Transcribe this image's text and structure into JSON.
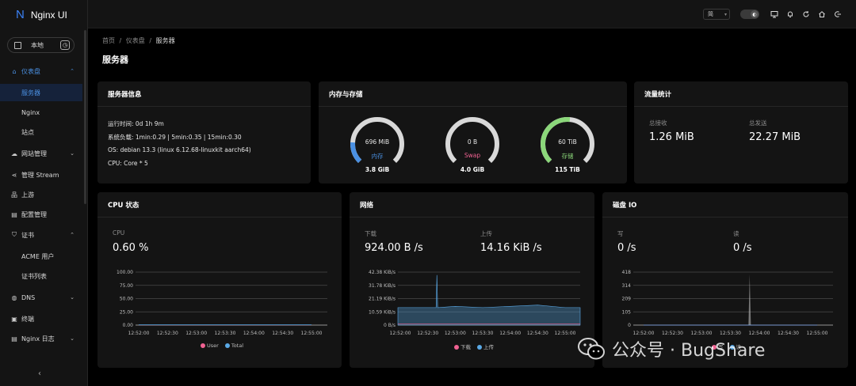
{
  "app": {
    "logo_mark": "N",
    "title": "Nginx UI"
  },
  "env": {
    "label": "本地",
    "switch_glyph": "◷"
  },
  "sidebar": {
    "items": [
      {
        "label": "仪表盘",
        "icon": "home-icon",
        "glyph": "⌂",
        "expanded": true
      },
      {
        "label": "服务器",
        "sub": true,
        "selected": true
      },
      {
        "label": "Nginx",
        "sub": true
      },
      {
        "label": "站点",
        "sub": true
      },
      {
        "label": "网站管理",
        "icon": "cloud-icon",
        "glyph": "☁"
      },
      {
        "label": "管理 Stream",
        "icon": "share-icon",
        "glyph": "⋖"
      },
      {
        "label": "上游",
        "icon": "cluster-icon",
        "glyph": "品"
      },
      {
        "label": "配置管理",
        "icon": "file-icon",
        "glyph": "▤"
      },
      {
        "label": "证书",
        "icon": "shield-icon",
        "glyph": "⛉",
        "expanded": true
      },
      {
        "label": "ACME 用户",
        "sub": true
      },
      {
        "label": "证书列表",
        "sub": true
      },
      {
        "label": "DNS",
        "icon": "globe-icon",
        "glyph": "◍"
      },
      {
        "label": "终端",
        "icon": "terminal-icon",
        "glyph": "▣"
      },
      {
        "label": "Nginx 日志",
        "icon": "log-icon",
        "glyph": "▤"
      }
    ],
    "collapse_glyph": "‹"
  },
  "topbar": {
    "lang_value": "简",
    "lang_caret": "▾",
    "theme_glyph": "◐"
  },
  "breadcrumb": {
    "items": [
      "首页",
      "仪表盘",
      "服务器"
    ],
    "sep": "/"
  },
  "page_title": "服务器",
  "server_info": {
    "title": "服务器信息",
    "lines": [
      "运行时间: 0d 1h 9m",
      "系统负载: 1min:0.29 | 5min:0.35 | 15min:0.30",
      "OS: debian 13.3 (linux 6.12.68-linuxkit aarch64)",
      "CPU: Core * 5"
    ]
  },
  "memory": {
    "title": "内存与存储",
    "gauges": [
      {
        "value": "696 MiB",
        "label": "内存",
        "total": "3.8 GiB",
        "percent": 18,
        "color": "#4a90e2",
        "label_color": "#4a90e2"
      },
      {
        "value": "0 B",
        "label": "Swap",
        "total": "4.0 GiB",
        "percent": 0,
        "color": "#4a90e2",
        "label_color": "#f06292"
      },
      {
        "value": "60 TiB",
        "label": "存储",
        "total": "115 TiB",
        "percent": 52,
        "color": "#8bd77a",
        "label_color": "#8bd77a"
      }
    ]
  },
  "traffic": {
    "title": "流量统计",
    "recv_label": "总接收",
    "recv_value": "1.26 MiB",
    "sent_label": "总发送",
    "sent_value": "22.27 MiB"
  },
  "cpu": {
    "title": "CPU 状态",
    "label": "CPU",
    "value": "0.60 %",
    "legend": [
      {
        "name": "User",
        "color": "#f06292"
      },
      {
        "name": "Total",
        "color": "#5aa9e6"
      }
    ]
  },
  "network": {
    "title": "网络",
    "down_label": "下载",
    "down_value": "924.00 B /s",
    "up_label": "上传",
    "up_value": "14.16 KiB /s",
    "legend": [
      {
        "name": "下载",
        "color": "#f06292"
      },
      {
        "name": "上传",
        "color": "#5aa9e6"
      }
    ]
  },
  "disk": {
    "title": "磁盘 IO",
    "write_label": "写",
    "write_value": "0 /s",
    "read_label": "读",
    "read_value": "0 /s",
    "legend": [
      {
        "name": "写",
        "color": "#f06292"
      },
      {
        "name": "读",
        "color": "#5aa9e6"
      }
    ]
  },
  "chart_data": [
    {
      "type": "line",
      "title": "CPU 状态",
      "x": [
        "12:52:00",
        "12:52:30",
        "12:53:00",
        "12:53:30",
        "12:54:00",
        "12:54:30",
        "12:55:00"
      ],
      "ylim": [
        0,
        100
      ],
      "yticks": [
        "100.00",
        "75.00",
        "50.00",
        "25.00",
        "0.00"
      ],
      "series": [
        {
          "name": "User",
          "values": [
            0.3,
            0.3,
            0.3,
            0.3,
            0.3,
            0.3,
            0.3
          ]
        },
        {
          "name": "Total",
          "values": [
            0.6,
            0.6,
            0.6,
            0.6,
            0.6,
            0.6,
            0.6
          ]
        }
      ]
    },
    {
      "type": "area",
      "title": "网络",
      "x": [
        "12:52:00",
        "12:52:30",
        "12:53:00",
        "12:53:30",
        "12:54:00",
        "12:54:30",
        "12:55:00"
      ],
      "yticks": [
        "42.38 KiB/s",
        "31.78 KiB/s",
        "21.19 KiB/s",
        "10.59 KiB/s",
        "0 B/s"
      ],
      "ylim": [
        0,
        42.38
      ],
      "series": [
        {
          "name": "下载",
          "values": [
            0.9,
            0.9,
            0.9,
            0.9,
            0.9,
            0.9,
            0.9
          ]
        },
        {
          "name": "上传",
          "values": [
            14,
            14,
            15,
            14,
            15,
            16,
            14
          ],
          "peak": {
            "x": "12:52:40",
            "value": 40
          }
        }
      ]
    },
    {
      "type": "line",
      "title": "磁盘 IO",
      "x": [
        "12:52:00",
        "12:52:30",
        "12:53:00",
        "12:53:30",
        "12:54:00",
        "12:54:30",
        "12:55:00"
      ],
      "yticks": [
        "418",
        "314",
        "209",
        "105",
        "0"
      ],
      "ylim": [
        0,
        418
      ],
      "series": [
        {
          "name": "写",
          "values": [
            0,
            0,
            0,
            0,
            0,
            0,
            0
          ],
          "peak": {
            "x": "12:53:50",
            "value": 400
          }
        },
        {
          "name": "读",
          "values": [
            0,
            0,
            0,
            0,
            0,
            0,
            0
          ]
        }
      ]
    }
  ],
  "watermark": {
    "text": "公众号 · BugShare"
  }
}
